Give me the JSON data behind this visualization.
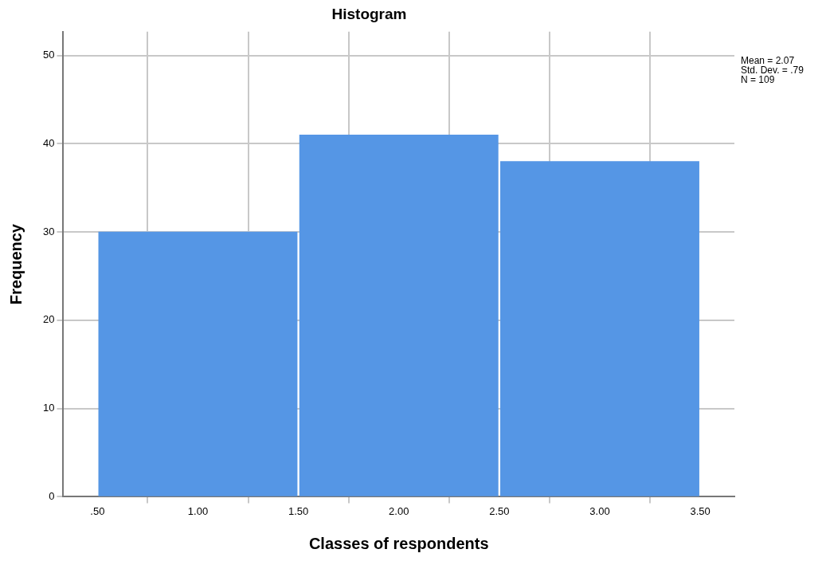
{
  "chart_data": {
    "type": "histogram",
    "title": "Histogram",
    "xlabel": "Classes of respondents",
    "ylabel": "Frequency",
    "bins": [
      0.5,
      1.5,
      2.5,
      3.5
    ],
    "values": [
      30,
      41,
      38
    ],
    "color": "#5596e5",
    "xlim": [
      0.33,
      3.67
    ],
    "xticks": [
      {
        "value": 0.5,
        "label": ".50"
      },
      {
        "value": 1,
        "label": "1.00"
      },
      {
        "value": 1.5,
        "label": "1.50"
      },
      {
        "value": 2,
        "label": "2.00"
      },
      {
        "value": 2.5,
        "label": "2.50"
      },
      {
        "value": 3,
        "label": "3.00"
      },
      {
        "value": 3.5,
        "label": "3.50"
      }
    ],
    "ylim": [
      0,
      52.7
    ],
    "yticks": [
      0,
      10,
      20,
      30,
      40,
      50
    ],
    "grid": true,
    "legend": false,
    "annotations": [
      "Mean = 2.07",
      "Std. Dev. = .79",
      "N = 109"
    ]
  }
}
